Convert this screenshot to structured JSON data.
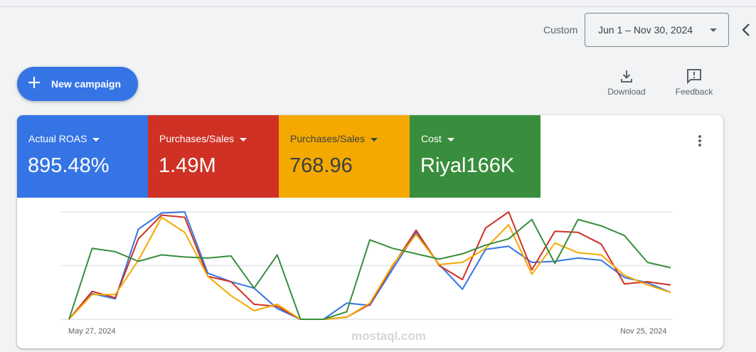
{
  "header": {
    "date_range_label": "Custom",
    "date_range_value": "Jun 1 – Nov 30, 2024",
    "back_icon": "chevron-left-icon"
  },
  "actions": {
    "new_campaign_label": "New campaign",
    "new_campaign_icon": "plus-icon",
    "download_label": "Download",
    "download_icon": "download-icon",
    "feedback_label": "Feedback",
    "feedback_icon": "feedback-icon"
  },
  "metrics": [
    {
      "label": "Actual ROAS",
      "value": "895.48%",
      "bg": "#3574e5",
      "fg": "#ffffff"
    },
    {
      "label": "Purchases/Sales",
      "value": "1.49M",
      "bg": "#cf3125",
      "fg": "#ffffff"
    },
    {
      "label": "Purchases/Sales",
      "value": "768.96",
      "bg": "#f3a900",
      "fg": "#3c4043"
    },
    {
      "label": "Cost",
      "value": "Riyal166K",
      "bg": "#388e3c",
      "fg": "#ffffff"
    }
  ],
  "more_icon": "more-vert-icon",
  "watermark": "mostaql.com",
  "chart_data": {
    "type": "line",
    "title": "",
    "xlabel": "",
    "ylabel": "",
    "x_tick_labels": [
      "May 27, 2024",
      "Nov 25, 2024"
    ],
    "grid": true,
    "gridlines": 3,
    "legend": "none",
    "ylim": [
      0,
      100
    ],
    "x": [
      0,
      1,
      2,
      3,
      4,
      5,
      6,
      7,
      8,
      9,
      10,
      11,
      12,
      13,
      14,
      15,
      16,
      17,
      18,
      19,
      20,
      21,
      22,
      23,
      24,
      25,
      26
    ],
    "series": [
      {
        "name": "Actual ROAS",
        "color": "#3574e5",
        "values": [
          0,
          24,
          19,
          84,
          99,
          100,
          43,
          35,
          29,
          10,
          0,
          0,
          15,
          13,
          47,
          81,
          51,
          28,
          65,
          68,
          53,
          54,
          57,
          55,
          39,
          34,
          25
        ]
      },
      {
        "name": "Purchases/Sales (1.49M)",
        "color": "#cf3125",
        "values": [
          0,
          26,
          20,
          75,
          97,
          95,
          40,
          35,
          14,
          12,
          0,
          0,
          2,
          14,
          50,
          83,
          50,
          37,
          85,
          100,
          46,
          82,
          81,
          70,
          33,
          35,
          32
        ]
      },
      {
        "name": "Purchases/Sales (768.96)",
        "color": "#f3a900",
        "values": [
          0,
          23,
          23,
          55,
          95,
          81,
          40,
          22,
          8,
          14,
          0,
          0,
          2,
          15,
          51,
          79,
          51,
          53,
          66,
          88,
          42,
          71,
          62,
          60,
          41,
          32,
          25
        ]
      },
      {
        "name": "Cost",
        "color": "#388e3c",
        "values": [
          0,
          66,
          63,
          54,
          60,
          58,
          57,
          59,
          29,
          60,
          0,
          0,
          7,
          74,
          66,
          61,
          56,
          61,
          69,
          75,
          93,
          52,
          93,
          87,
          78,
          53,
          48
        ]
      }
    ]
  }
}
